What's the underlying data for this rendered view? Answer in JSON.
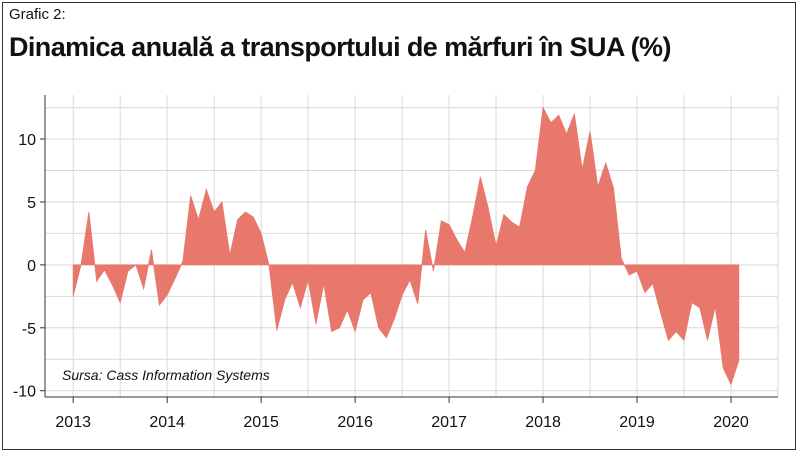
{
  "header": {
    "label": "Grafic 2:",
    "title": "Dinamica anuală a transportului de mărfuri în SUA (%)"
  },
  "source": "Sursa: Cass Information Systems",
  "colors": {
    "area": "#e8776c",
    "grid": "#d9d9d9",
    "axis": "#333333"
  },
  "chart_data": {
    "type": "area",
    "title": "Dinamica anuală a transportului de mărfuri în SUA (%)",
    "xlabel": "",
    "ylabel": "",
    "xlim": [
      2012.7,
      2020.5
    ],
    "ylim": [
      -10.5,
      13.5
    ],
    "grid": true,
    "legend": "none",
    "x_ticks": [
      2013,
      2014,
      2015,
      2016,
      2017,
      2018,
      2019,
      2020
    ],
    "y_ticks": [
      -10,
      -5,
      0,
      5,
      10
    ],
    "y_tick_labels": [
      "-10",
      "-5",
      "0",
      "5",
      "10"
    ],
    "series": [
      {
        "x": [
          2013.0,
          2013.083,
          2013.167,
          2013.25,
          2013.333,
          2013.417,
          2013.5,
          2013.583,
          2013.667,
          2013.75,
          2013.833,
          2013.917,
          2014.0,
          2014.083,
          2014.167,
          2014.25,
          2014.333,
          2014.417,
          2014.5,
          2014.583,
          2014.667,
          2014.75,
          2014.833,
          2014.917,
          2015.0,
          2015.083,
          2015.167,
          2015.25,
          2015.333,
          2015.417,
          2015.5,
          2015.583,
          2015.667,
          2015.75,
          2015.833,
          2015.917,
          2016.0,
          2016.083,
          2016.167,
          2016.25,
          2016.333,
          2016.417,
          2016.5,
          2016.583,
          2016.667,
          2016.75,
          2016.833,
          2016.917,
          2017.0,
          2017.083,
          2017.167,
          2017.25,
          2017.333,
          2017.417,
          2017.5,
          2017.583,
          2017.667,
          2017.75,
          2017.833,
          2017.917,
          2018.0,
          2018.083,
          2018.167,
          2018.25,
          2018.333,
          2018.417,
          2018.5,
          2018.583,
          2018.667,
          2018.75,
          2018.833,
          2018.917,
          2019.0,
          2019.083,
          2019.167,
          2019.25,
          2019.333,
          2019.417,
          2019.5,
          2019.583,
          2019.667,
          2019.75,
          2019.833,
          2019.917,
          2020.0,
          2020.083
        ],
        "values": [
          -2.5,
          0.0,
          4.2,
          -1.3,
          -0.4,
          -1.6,
          -3.0,
          -0.5,
          0.0,
          -1.9,
          1.2,
          -3.2,
          -2.4,
          -1.1,
          0.3,
          5.5,
          3.6,
          6.0,
          4.2,
          5.0,
          0.8,
          3.6,
          4.2,
          3.8,
          2.5,
          0.0,
          -5.2,
          -2.8,
          -1.4,
          -3.4,
          -1.2,
          -4.7,
          -1.5,
          -5.3,
          -5.0,
          -3.6,
          -5.3,
          -2.8,
          -2.2,
          -5.0,
          -5.8,
          -4.3,
          -2.4,
          -1.2,
          -3.1,
          2.8,
          -0.5,
          3.5,
          3.2,
          2.0,
          1.0,
          3.8,
          7.0,
          4.5,
          1.5,
          4.0,
          3.4,
          3.0,
          6.2,
          7.5,
          12.5,
          11.3,
          11.9,
          10.4,
          12.0,
          7.6,
          10.6,
          6.2,
          8.1,
          6.1,
          0.5,
          -0.8,
          -0.5,
          -2.2,
          -1.5,
          -3.8,
          -6.0,
          -5.3,
          -6.0,
          -3.0,
          -3.4,
          -6.0,
          -3.3,
          -8.2,
          -9.5,
          -7.6
        ]
      }
    ]
  }
}
